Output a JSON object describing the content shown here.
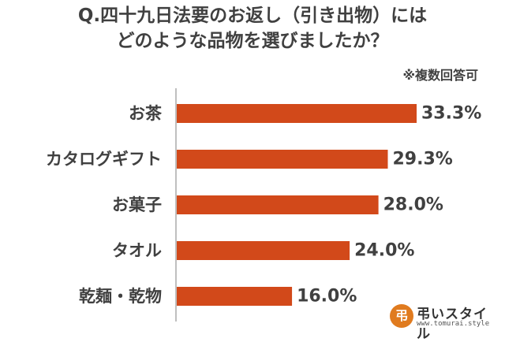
{
  "chart_data": {
    "type": "bar",
    "orientation": "horizontal",
    "title_lines": [
      "Q.四十九日法要のお返し（引き出物）には",
      "どのような品物を選びましたか？"
    ],
    "note": "※複数回答可",
    "categories": [
      "お茶",
      "カタログギフト",
      "お菓子",
      "タオル",
      "乾麺・乾物"
    ],
    "values": [
      33.3,
      29.3,
      28.0,
      24.0,
      16.0
    ],
    "value_labels": [
      "33.3%",
      "29.3%",
      "28.0%",
      "24.0%",
      "16.0%"
    ],
    "bar_color": "#d2491a",
    "axis_color": "#bfbfbf",
    "xlim": [
      0,
      40
    ],
    "grid": false,
    "legend": "none"
  },
  "logo": {
    "mark": "弔",
    "name": "弔いスタイル",
    "url": "www.tomurai.style"
  }
}
